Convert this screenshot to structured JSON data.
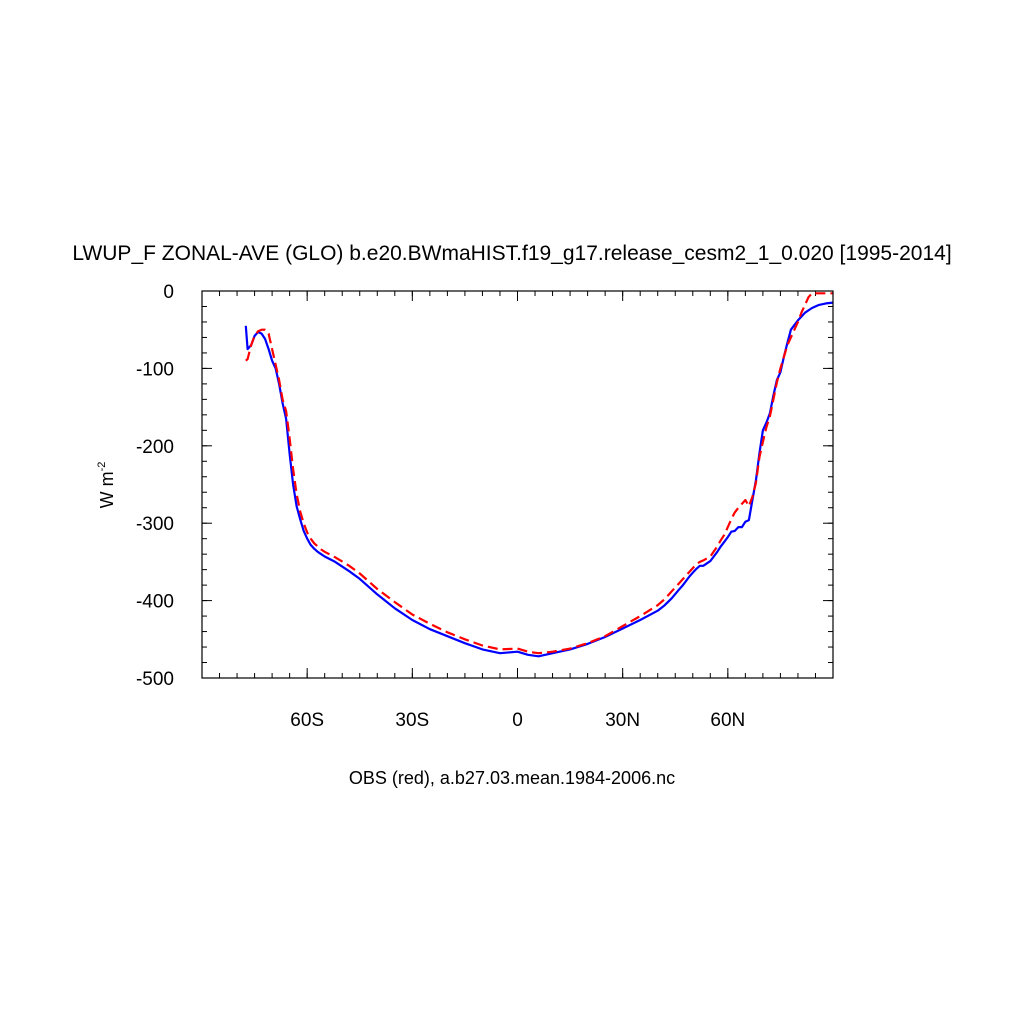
{
  "chart_data": {
    "type": "line",
    "title": "LWUP_F ZONAL-AVE (GLO) b.e20.BWmaHIST.f19_g17.release_cesm2_1_0.020 [1995-2014]",
    "ylabel_main": "W m",
    "ylabel_sup": "-2",
    "xlabel": "OBS (red), a.b27.03.mean.1984-2006.nc",
    "xlim": [
      -90,
      90
    ],
    "ylim": [
      -500,
      0
    ],
    "x_ticks": [
      {
        "value": -60,
        "label": "60S"
      },
      {
        "value": -30,
        "label": "30S"
      },
      {
        "value": 0,
        "label": "0"
      },
      {
        "value": 30,
        "label": "30N"
      },
      {
        "value": 60,
        "label": "60N"
      }
    ],
    "y_ticks": [
      {
        "value": 0,
        "label": "0"
      },
      {
        "value": -100,
        "label": "-100"
      },
      {
        "value": -200,
        "label": "-200"
      },
      {
        "value": -300,
        "label": "-300"
      },
      {
        "value": -400,
        "label": "-400"
      },
      {
        "value": -500,
        "label": "-500"
      }
    ],
    "series": [
      {
        "style": "solid",
        "color": "#0000ff",
        "x": [
          -77.5,
          -77,
          -76,
          -75,
          -74,
          -73,
          -72,
          -71,
          -70,
          -69,
          -68,
          -67,
          -66,
          -65,
          -64,
          -63,
          -62,
          -61,
          -60,
          -59,
          -58,
          -57,
          -56,
          -55,
          -52,
          -48,
          -45,
          -40,
          -35,
          -30,
          -25,
          -20,
          -15,
          -10,
          -5,
          0,
          3,
          6,
          10,
          15,
          20,
          25,
          30,
          35,
          40,
          42,
          44,
          46,
          47,
          48,
          49,
          50,
          51,
          52,
          53,
          55,
          57,
          58,
          59,
          60,
          61,
          62,
          63,
          64,
          65,
          66,
          67,
          68,
          69,
          70,
          71,
          72,
          73,
          74,
          75,
          76,
          77,
          78,
          80,
          82,
          84,
          86,
          88,
          90
        ],
        "y": [
          -45,
          -75,
          -70,
          -58,
          -53,
          -55,
          -62,
          -75,
          -90,
          -100,
          -120,
          -145,
          -165,
          -210,
          -250,
          -278,
          -295,
          -310,
          -320,
          -328,
          -333,
          -337,
          -340,
          -343,
          -350,
          -362,
          -372,
          -392,
          -410,
          -425,
          -437,
          -446,
          -455,
          -463,
          -468,
          -466,
          -470,
          -472,
          -468,
          -463,
          -456,
          -447,
          -436,
          -425,
          -413,
          -406,
          -397,
          -386,
          -381,
          -375,
          -369,
          -364,
          -359,
          -355,
          -355,
          -349,
          -337,
          -330,
          -324,
          -318,
          -311,
          -310,
          -305,
          -305,
          -298,
          -296,
          -270,
          -245,
          -210,
          -180,
          -170,
          -158,
          -135,
          -115,
          -105,
          -85,
          -67,
          -50,
          -38,
          -28,
          -22,
          -18,
          -16,
          -15
        ]
      },
      {
        "style": "dashed",
        "color": "#ff0000",
        "x": [
          -77.5,
          -77,
          -76,
          -75,
          -74,
          -73,
          -72,
          -71,
          -70,
          -69,
          -68,
          -67,
          -66,
          -65,
          -64,
          -63,
          -62,
          -61,
          -60,
          -59,
          -58,
          -57,
          -56,
          -55,
          -52,
          -48,
          -45,
          -40,
          -35,
          -30,
          -25,
          -20,
          -15,
          -10,
          -5,
          0,
          3,
          6,
          10,
          15,
          20,
          25,
          30,
          35,
          40,
          42,
          44,
          46,
          47,
          48,
          49,
          50,
          51,
          52,
          53,
          55,
          57,
          58,
          59,
          60,
          61,
          62,
          63,
          64,
          65,
          66,
          67,
          68,
          69,
          70,
          71,
          72,
          73,
          74,
          75,
          76,
          77,
          78,
          79,
          80,
          81,
          82,
          83,
          84,
          86,
          88,
          90
        ],
        "y": [
          -90,
          -88,
          -70,
          -58,
          -52,
          -50,
          -50,
          -55,
          -75,
          -95,
          -115,
          -140,
          -155,
          -190,
          -230,
          -262,
          -285,
          -300,
          -312,
          -320,
          -326,
          -330,
          -334,
          -337,
          -344,
          -355,
          -365,
          -385,
          -402,
          -418,
          -430,
          -441,
          -450,
          -458,
          -463,
          -462,
          -466,
          -468,
          -466,
          -462,
          -455,
          -446,
          -433,
          -420,
          -406,
          -398,
          -388,
          -378,
          -373,
          -368,
          -363,
          -358,
          -353,
          -350,
          -348,
          -343,
          -330,
          -322,
          -315,
          -305,
          -295,
          -286,
          -280,
          -275,
          -270,
          -278,
          -266,
          -248,
          -215,
          -195,
          -176,
          -162,
          -140,
          -118,
          -100,
          -85,
          -70,
          -60,
          -50,
          -40,
          -28,
          -18,
          -8,
          -3,
          -3,
          -3,
          -3
        ]
      }
    ]
  }
}
